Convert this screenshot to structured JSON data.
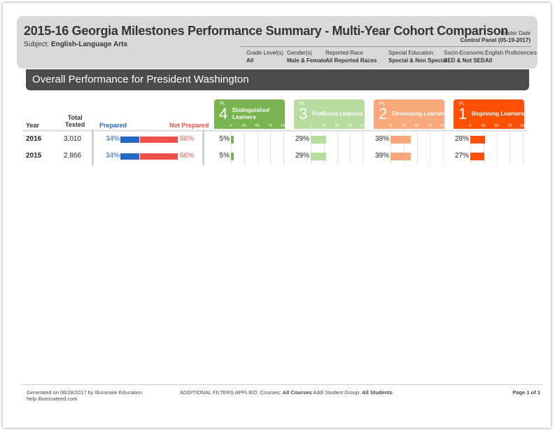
{
  "header": {
    "title": "2015-16 Georgia Milestones Performance Summary - Multi-Year Cohort Comparison",
    "subject_label": "Subject:",
    "subject_value": "English-Language Arts",
    "roster_label": "Roster Date",
    "roster_value": "Control Panel (05-19-2017)",
    "filters": [
      {
        "label": "Grade Level(s)",
        "value": "All"
      },
      {
        "label": "Gender(s)",
        "value": "Male & Female"
      },
      {
        "label": "Reported Race",
        "value": "All Reported Races"
      },
      {
        "label": "Special Education",
        "value": "Special & Non Special"
      },
      {
        "label": "Socio-Economic",
        "value": "SED & Not SED"
      },
      {
        "label": "English Proficiencies",
        "value": "All"
      }
    ]
  },
  "banner": {
    "title": "Overall Performance for President Washington"
  },
  "columns": {
    "year": "Year",
    "total_tested": "Total\nTested",
    "prepared": "Prepared",
    "not_prepared": "Not Prepared"
  },
  "performance_levels": [
    {
      "tag": "PL",
      "num": "4",
      "label": "Distinguished\nLearners",
      "color": "#79b450"
    },
    {
      "tag": "PL",
      "num": "3",
      "label": "Proficient Learners",
      "color": "#b8dba0"
    },
    {
      "tag": "PL",
      "num": "2",
      "label": "Developing Learners",
      "color": "#f8a87a"
    },
    {
      "tag": "PL",
      "num": "1",
      "label": "Beginning Learners",
      "color": "#fb5006"
    }
  ],
  "scale_ticks": [
    "0",
    "25",
    "50",
    "75",
    "100"
  ],
  "colors": {
    "prepared": "#2468c4",
    "not_prepared": "#f05048"
  },
  "rows": [
    {
      "year": "2016",
      "total": "3,010",
      "prepared_pct": 34,
      "prepared": "34%",
      "not_prepared_pct": 66,
      "not_prepared": "66%",
      "levels": [
        {
          "pct": 5,
          "text": "5%"
        },
        {
          "pct": 29,
          "text": "29%"
        },
        {
          "pct": 38,
          "text": "38%"
        },
        {
          "pct": 28,
          "text": "28%"
        }
      ]
    },
    {
      "year": "2015",
      "total": "2,866",
      "prepared_pct": 34,
      "prepared": "34%",
      "not_prepared_pct": 66,
      "not_prepared": "66%",
      "levels": [
        {
          "pct": 5,
          "text": "5%"
        },
        {
          "pct": 29,
          "text": "29%"
        },
        {
          "pct": 39,
          "text": "39%"
        },
        {
          "pct": 27,
          "text": "27%"
        }
      ]
    }
  ],
  "footer": {
    "generated": "Generated on 06/28/2017 by Illuminate Education",
    "help": "help.illuminateed.com",
    "filters_label": "ADDITIONAL FILTERS APPLIED:",
    "courses_label": "Courses:",
    "courses_value": "All Courses",
    "group_label": "Addl Student Group:",
    "group_value": "All Students",
    "page": "Page 1 of 1"
  }
}
